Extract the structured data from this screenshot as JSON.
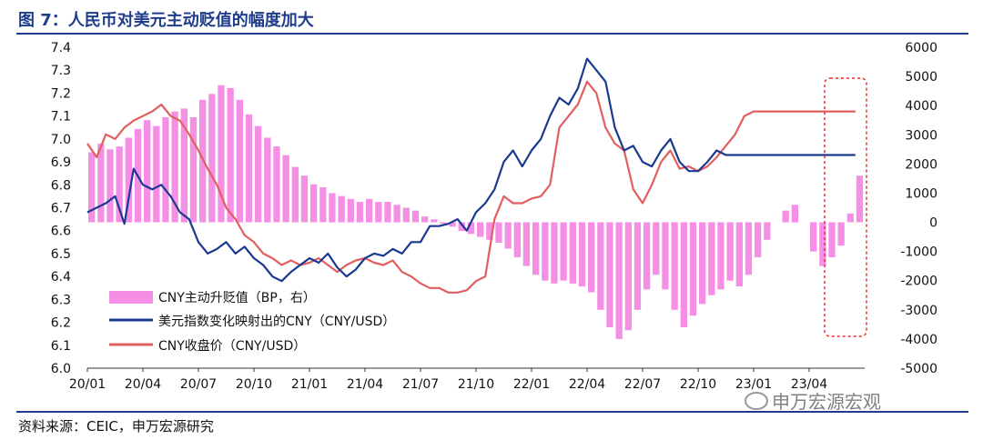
{
  "title": "图 7：人民币对美元主动贬值的幅度加大",
  "source": "资料来源：CEIC，申万宏源研究",
  "watermark": "申万宏源宏观",
  "colors": {
    "bar": "#f58fe6",
    "dxy_line": "#1a3a8f",
    "cny_line": "#e05f5f",
    "highlight_box": "#e03030",
    "title": "#1f3d8a"
  },
  "chart_data": {
    "type": "bar+line",
    "x_tick_labels": [
      "20/01",
      "20/04",
      "20/07",
      "20/10",
      "21/01",
      "21/04",
      "21/07",
      "21/10",
      "22/01",
      "22/04",
      "22/07",
      "22/10",
      "23/01",
      "23/04"
    ],
    "left_axis": {
      "range": [
        6.0,
        7.4
      ],
      "ticks": [
        "7.4",
        "7.3",
        "7.2",
        "7.1",
        "7.0",
        "6.9",
        "6.8",
        "6.7",
        "6.6",
        "6.5",
        "6.4",
        "6.3",
        "6.2",
        "6.1",
        "6.0"
      ]
    },
    "right_axis": {
      "range": [
        -5000,
        6000
      ],
      "ticks": [
        "6000",
        "5000",
        "4000",
        "3000",
        "2000",
        "1000",
        "0",
        "-1000",
        "-2000",
        "-3000",
        "-4000",
        "-5000"
      ]
    },
    "legend": [
      "CNY主动升贬值（BP，右）",
      "美元指数变化映射出的CNY（CNY/USD）",
      "CNY收盘价（CNY/USD）"
    ],
    "series": [
      {
        "name": "CNY主动升贬值（BP，右）",
        "kind": "bar",
        "axis": "right",
        "x": [
          0,
          0.5,
          1,
          1.5,
          2,
          2.5,
          3,
          3.5,
          4,
          4.5,
          5,
          5.5,
          6,
          6.5,
          7,
          7.5,
          8,
          8.5,
          9,
          9.5,
          10,
          10.5,
          11,
          11.5,
          12,
          12.5,
          13,
          13.5,
          14,
          14.5,
          15,
          15.5,
          16,
          16.5,
          17,
          17.5,
          18,
          18.5,
          19,
          19.5,
          20,
          20.5,
          21,
          21.5,
          22,
          22.5,
          23,
          23.5,
          24,
          24.5,
          25,
          25.5,
          26,
          26.5,
          27,
          27.5,
          28,
          28.5,
          29,
          29.5,
          30,
          30.5,
          31,
          31.5,
          32,
          32.5,
          33,
          33.5,
          34,
          34.5,
          35,
          35.5,
          36,
          36.5,
          37,
          37.5,
          38,
          38.5,
          39,
          39.5,
          40,
          40.5,
          41,
          41.5
        ],
        "values": [
          2400,
          2700,
          2500,
          2600,
          2900,
          3200,
          3500,
          3300,
          3600,
          3800,
          3900,
          3600,
          4200,
          4400,
          4700,
          4600,
          4200,
          3700,
          3300,
          2900,
          2600,
          2300,
          1900,
          1600,
          1300,
          1200,
          1000,
          900,
          800,
          700,
          800,
          700,
          700,
          600,
          500,
          400,
          200,
          100,
          -50,
          -150,
          -300,
          -400,
          -500,
          -600,
          -700,
          -900,
          -1200,
          -1500,
          -1800,
          -2000,
          -2100,
          -2000,
          -2100,
          -2200,
          -2400,
          -3000,
          -3600,
          -4000,
          -3700,
          -3000,
          -2300,
          -1800,
          -2300,
          -3000,
          -3600,
          -3200,
          -2800,
          -2500,
          -2300,
          -2000,
          -2200,
          -1800,
          -1200,
          -600,
          0,
          400,
          600,
          0,
          -1000,
          -1500,
          -1200,
          -800,
          300,
          1600
        ]
      },
      {
        "name": "美元指数变化映射出的CNY（CNY/USD）",
        "kind": "line",
        "axis": "left",
        "x": [
          0,
          0.5,
          1,
          1.5,
          2,
          2.5,
          3,
          3.5,
          4,
          4.5,
          5,
          5.5,
          6,
          6.5,
          7,
          7.5,
          8,
          8.5,
          9,
          9.5,
          10,
          10.5,
          11,
          11.5,
          12,
          12.5,
          13,
          13.5,
          14,
          14.5,
          15,
          15.5,
          16,
          16.5,
          17,
          17.5,
          18,
          18.5,
          19,
          19.5,
          20,
          20.5,
          21,
          21.5,
          22,
          22.5,
          23,
          23.5,
          24,
          24.5,
          25,
          25.5,
          26,
          26.5,
          27,
          27.5,
          28,
          28.5,
          29,
          29.5,
          30,
          30.5,
          31,
          31.5,
          32,
          32.5,
          33,
          33.5,
          34,
          34.5,
          35,
          35.5,
          36,
          36.5,
          37,
          37.5,
          38,
          38.5,
          39,
          39.5,
          40,
          40.5,
          41,
          41.5
        ],
        "values": [
          6.68,
          6.7,
          6.72,
          6.75,
          6.63,
          6.87,
          6.8,
          6.78,
          6.8,
          6.75,
          6.68,
          6.65,
          6.55,
          6.5,
          6.52,
          6.55,
          6.5,
          6.53,
          6.48,
          6.45,
          6.4,
          6.38,
          6.42,
          6.45,
          6.48,
          6.46,
          6.5,
          6.44,
          6.4,
          6.43,
          6.48,
          6.5,
          6.49,
          6.52,
          6.5,
          6.55,
          6.55,
          6.62,
          6.62,
          6.63,
          6.65,
          6.6,
          6.68,
          6.72,
          6.78,
          6.9,
          6.95,
          6.88,
          6.95,
          7.0,
          7.1,
          7.18,
          7.15,
          7.22,
          7.35,
          7.3,
          7.25,
          7.05,
          6.95,
          6.97,
          6.9,
          6.88,
          6.95,
          7.0,
          6.9,
          6.86,
          6.86,
          6.9,
          6.95,
          6.93,
          6.93,
          6.93,
          6.93,
          6.93,
          6.93,
          6.93,
          6.93,
          6.93,
          6.93,
          6.93,
          6.93,
          6.93,
          6.93,
          6.93
        ]
      },
      {
        "name": "CNY收盘价（CNY/USD）",
        "kind": "line",
        "axis": "left",
        "x": [
          0,
          0.5,
          1,
          1.5,
          2,
          2.5,
          3,
          3.5,
          4,
          4.5,
          5,
          5.5,
          6,
          6.5,
          7,
          7.5,
          8,
          8.5,
          9,
          9.5,
          10,
          10.5,
          11,
          11.5,
          12,
          12.5,
          13,
          13.5,
          14,
          14.5,
          15,
          15.5,
          16,
          16.5,
          17,
          17.5,
          18,
          18.5,
          19,
          19.5,
          20,
          20.5,
          21,
          21.5,
          22,
          22.5,
          23,
          23.5,
          24,
          24.5,
          25,
          25.5,
          26,
          26.5,
          27,
          27.5,
          28,
          28.5,
          29,
          29.5,
          30,
          30.5,
          31,
          31.5,
          32,
          32.5,
          33,
          33.5,
          34,
          34.5,
          35,
          35.5,
          36,
          36.5,
          37,
          37.5,
          38,
          38.5,
          39,
          39.5,
          40,
          40.5,
          41,
          41.5
        ],
        "values": [
          6.98,
          6.92,
          7.02,
          7.0,
          7.05,
          7.08,
          7.1,
          7.12,
          7.15,
          7.1,
          7.08,
          7.02,
          6.95,
          6.87,
          6.8,
          6.7,
          6.65,
          6.58,
          6.55,
          6.5,
          6.48,
          6.45,
          6.47,
          6.45,
          6.46,
          6.48,
          6.45,
          6.42,
          6.45,
          6.47,
          6.48,
          6.46,
          6.45,
          6.47,
          6.42,
          6.4,
          6.37,
          6.35,
          6.35,
          6.33,
          6.33,
          6.34,
          6.38,
          6.4,
          6.65,
          6.75,
          6.72,
          6.72,
          6.74,
          6.75,
          6.8,
          7.05,
          7.1,
          7.15,
          7.25,
          7.2,
          7.05,
          6.98,
          6.95,
          6.78,
          6.72,
          6.8,
          6.9,
          6.95,
          6.87,
          6.88,
          6.86,
          6.88,
          6.92,
          6.97,
          7.02,
          7.1,
          7.12,
          7.12,
          7.12,
          7.12,
          7.12,
          7.12,
          7.12,
          7.12,
          7.12,
          7.12,
          7.12,
          7.12
        ]
      }
    ]
  }
}
